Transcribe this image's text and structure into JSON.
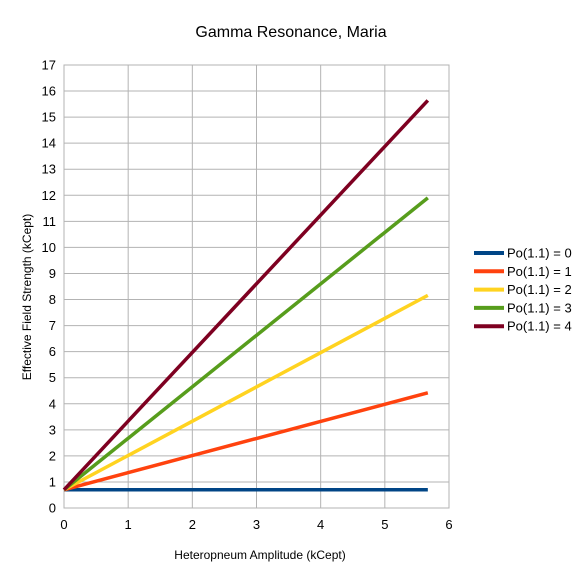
{
  "chart_data": {
    "type": "line",
    "title": "Gamma Resonance, Maria",
    "xlabel": "Heteropneum Amplitude (kCept)",
    "ylabel": "Effective Field Strength (kCept)",
    "xlim": [
      0,
      6
    ],
    "ylim": [
      0,
      17
    ],
    "x_ticks": [
      0,
      1,
      2,
      3,
      4,
      5,
      6
    ],
    "y_ticks": [
      0,
      1,
      2,
      3,
      4,
      5,
      6,
      7,
      8,
      9,
      10,
      11,
      12,
      13,
      14,
      15,
      16,
      17
    ],
    "grid": true,
    "legend_position": "right",
    "series": [
      {
        "name": "Po(1.1) = 0",
        "color": "#004586",
        "x": [
          0,
          5.67
        ],
        "y": [
          0.7,
          0.7
        ]
      },
      {
        "name": "Po(1.1) = 1",
        "color": "#ff420e",
        "x": [
          0,
          5.67
        ],
        "y": [
          0.7,
          4.42
        ]
      },
      {
        "name": "Po(1.1) = 2",
        "color": "#ffd320",
        "x": [
          0,
          5.67
        ],
        "y": [
          0.7,
          8.16
        ]
      },
      {
        "name": "Po(1.1) = 3",
        "color": "#579d1c",
        "x": [
          0,
          5.67
        ],
        "y": [
          0.7,
          11.9
        ]
      },
      {
        "name": "Po(1.1) = 4",
        "color": "#7e0021",
        "x": [
          0,
          5.67
        ],
        "y": [
          0.7,
          15.64
        ]
      }
    ]
  }
}
